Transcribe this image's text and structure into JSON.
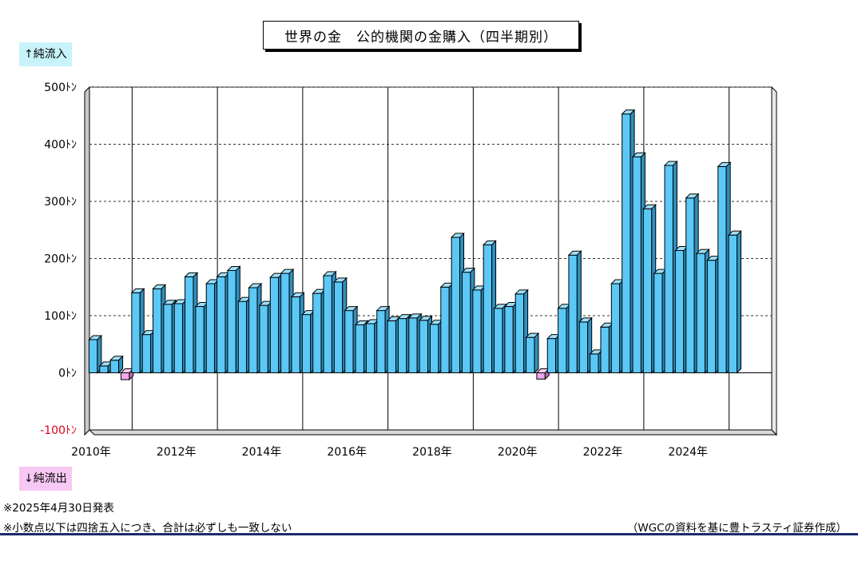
{
  "chart_data": {
    "type": "bar",
    "title": "世界の金　公的機関の金購入（四半期別）",
    "ylabel_top": "↑純流入",
    "ylabel_bottom": "↓純流出",
    "ylim": [
      -100,
      500
    ],
    "y_ticks": [
      "500ﾄﾝ",
      "400ﾄﾝ",
      "300ﾄﾝ",
      "200ﾄﾝ",
      "100ﾄﾝ",
      "0ﾄﾝ",
      "-100ﾄﾝ"
    ],
    "y_tick_values": [
      500,
      400,
      300,
      200,
      100,
      0,
      -100
    ],
    "x_year_labels": [
      "2010年",
      "2012年",
      "2014年",
      "2016年",
      "2018年",
      "2020年",
      "2022年",
      "2024年"
    ],
    "x_year_start": 2010,
    "x_year_end": 2026,
    "quarters_per_year": 4,
    "grid": true,
    "colors": {
      "positive": "#5bc8f5",
      "positive_side": "#2f8fbf",
      "positive_top": "#9de0fa",
      "negative": "#f0a8ea",
      "negative_side": "#c06ab8",
      "negative_top": "#f8d0f4"
    },
    "values": [
      58,
      12,
      22,
      -12,
      140,
      67,
      147,
      120,
      121,
      168,
      116,
      156,
      168,
      179,
      125,
      149,
      118,
      167,
      174,
      133,
      102,
      139,
      170,
      159,
      109,
      84,
      86,
      109,
      91,
      95,
      96,
      92,
      85,
      150,
      237,
      176,
      145,
      224,
      113,
      116,
      138,
      62,
      -11,
      60,
      113,
      206,
      89,
      33,
      80,
      156,
      453,
      378,
      287,
      174,
      363,
      214,
      306,
      209,
      197,
      361,
      241
    ]
  },
  "notes": {
    "date": "※2025年4月30日発表",
    "disclaimer": "※小数点以下は四捨五入につき、合計は必ずしも一致しない",
    "source": "（WGCの資料を基に豊トラスティ証券作成）"
  }
}
